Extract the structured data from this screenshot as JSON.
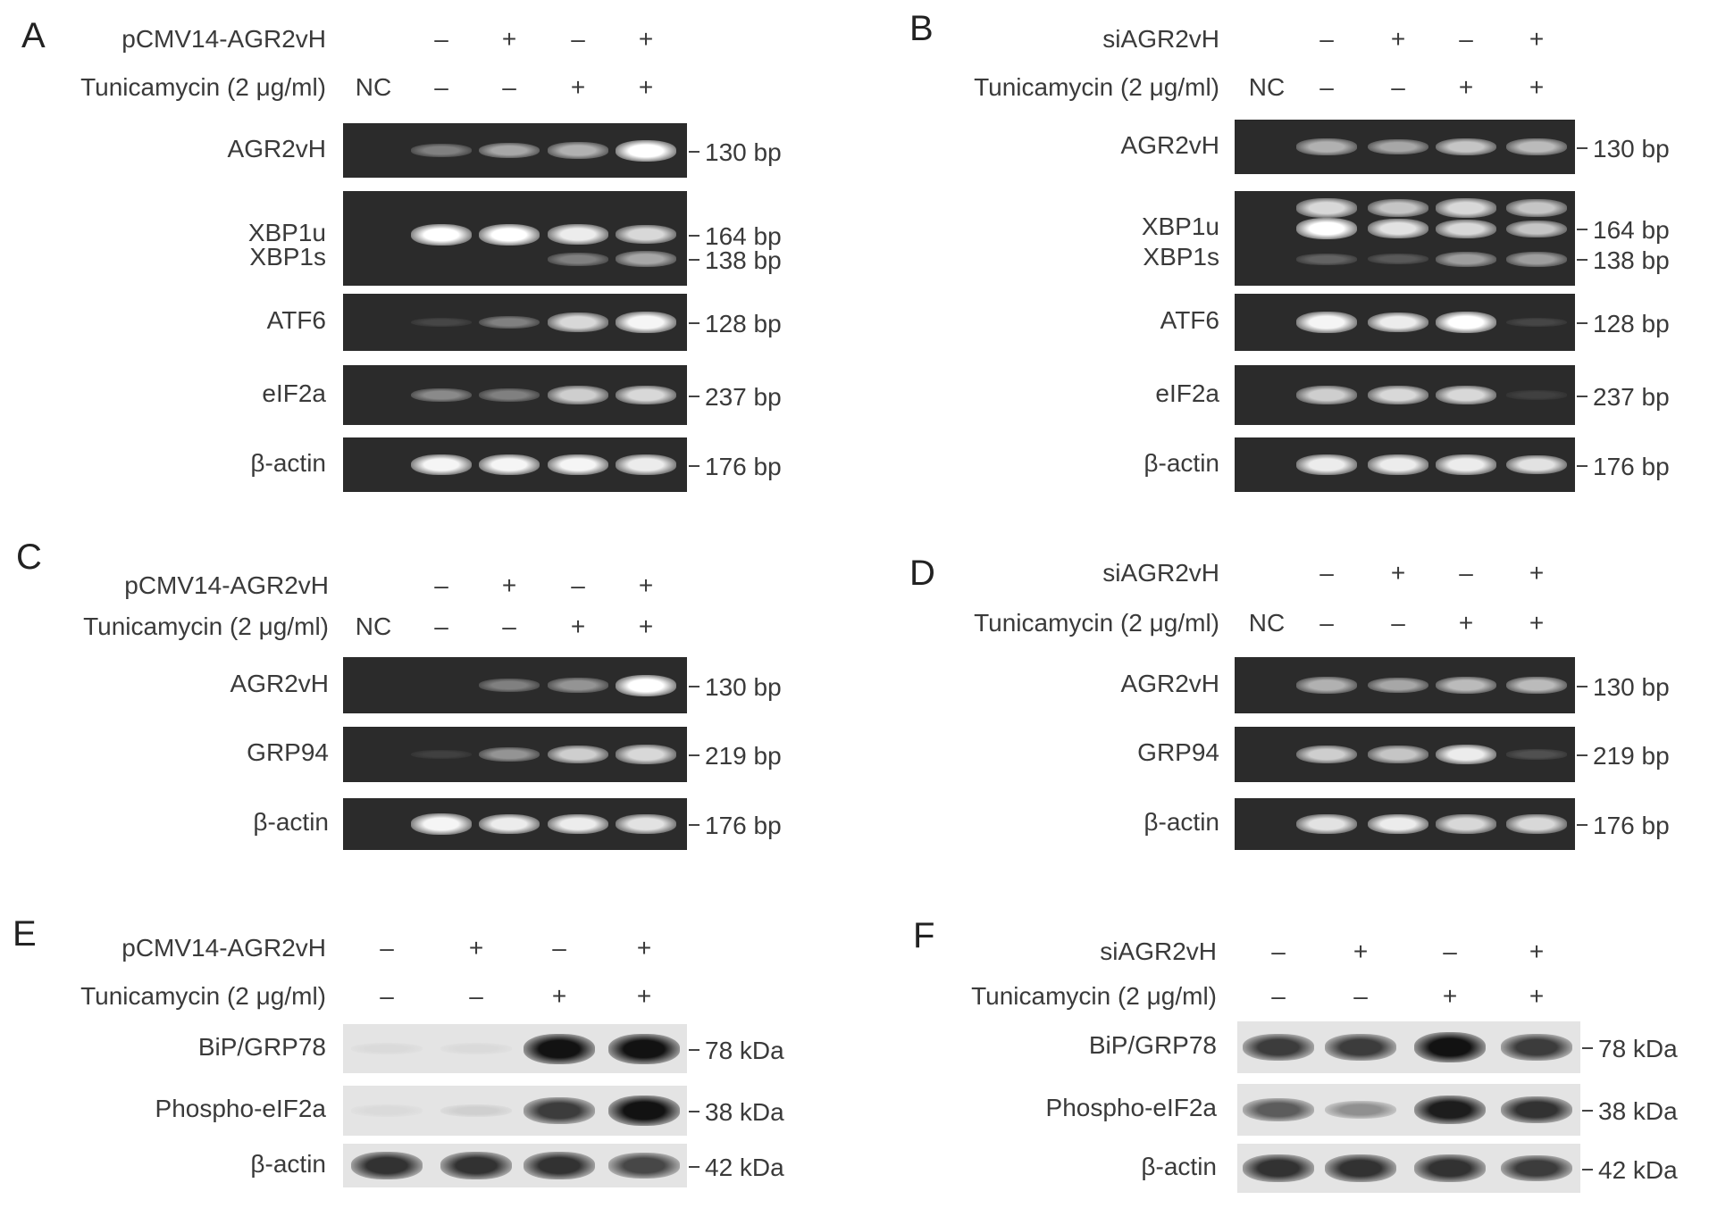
{
  "figure": {
    "panels": [
      {
        "id": "A",
        "type": "rt-pcr",
        "treatments": [
          {
            "label": "pCMV14-AGR2vH",
            "nc": "",
            "values": [
              "–",
              "+",
              "–",
              "+"
            ]
          },
          {
            "label": "Tunicamycin (2 μg/ml)",
            "nc": "NC",
            "values": [
              "–",
              "–",
              "+",
              "+"
            ]
          }
        ],
        "gels": [
          {
            "labels": [
              "AGR2vH"
            ],
            "bands": [
              {
                "marker": "130 bp",
                "intensity": [
                  0,
                  0.35,
                  0.55,
                  0.6,
                  1
                ]
              }
            ]
          },
          {
            "labels": [
              "XBP1u",
              "XBP1s"
            ],
            "bands": [
              {
                "marker": "164 bp",
                "intensity": [
                  0,
                  1,
                  1,
                  0.9,
                  0.8
                ]
              },
              {
                "marker": "138 bp",
                "intensity": [
                  0,
                  0,
                  0,
                  0.35,
                  0.55
                ]
              }
            ]
          },
          {
            "labels": [
              "ATF6"
            ],
            "bands": [
              {
                "marker": "128 bp",
                "intensity": [
                  0,
                  0.05,
                  0.35,
                  0.8,
                  0.95
                ]
              }
            ]
          },
          {
            "labels": [
              "eIF2a"
            ],
            "bands": [
              {
                "marker": "237 bp",
                "intensity": [
                  0,
                  0.4,
                  0.35,
                  0.75,
                  0.8
                ]
              }
            ]
          },
          {
            "labels": [
              "β-actin"
            ],
            "bands": [
              {
                "marker": "176 bp",
                "intensity": [
                  0,
                  0.95,
                  0.95,
                  0.95,
                  0.9
                ]
              }
            ]
          }
        ]
      },
      {
        "id": "B",
        "type": "rt-pcr",
        "treatments": [
          {
            "label": "siAGR2vH",
            "nc": "",
            "values": [
              "–",
              "+",
              "–",
              "+"
            ]
          },
          {
            "label": "Tunicamycin (2 μg/ml)",
            "nc": "NC",
            "values": [
              "–",
              "–",
              "+",
              "+"
            ]
          }
        ],
        "gels": [
          {
            "labels": [
              "AGR2vH"
            ],
            "bands": [
              {
                "marker": "130 bp",
                "intensity": [
                  0,
                  0.6,
                  0.55,
                  0.7,
                  0.65
                ]
              }
            ]
          },
          {
            "labels": [
              "XBP1u",
              "XBP1s"
            ],
            "bands": [
              {
                "marker": "",
                "intensity": [
                  0,
                  0.8,
                  0.7,
                  0.8,
                  0.7
                ]
              },
              {
                "marker": "164 bp",
                "intensity": [
                  0,
                  1,
                  0.85,
                  0.8,
                  0.7
                ]
              },
              {
                "marker": "138 bp",
                "intensity": [
                  0,
                  0.2,
                  0.15,
                  0.5,
                  0.5
                ]
              }
            ]
          },
          {
            "labels": [
              "ATF6"
            ],
            "bands": [
              {
                "marker": "128 bp",
                "intensity": [
                  0,
                  0.95,
                  0.9,
                  1,
                  0.05
                ]
              }
            ]
          },
          {
            "labels": [
              "eIF2a"
            ],
            "bands": [
              {
                "marker": "237 bp",
                "intensity": [
                  0,
                  0.75,
                  0.8,
                  0.8,
                  0.02
                ]
              }
            ]
          },
          {
            "labels": [
              "β-actin"
            ],
            "bands": [
              {
                "marker": "176 bp",
                "intensity": [
                  0,
                  0.9,
                  0.9,
                  0.9,
                  0.85
                ]
              }
            ]
          }
        ]
      },
      {
        "id": "C",
        "type": "rt-pcr",
        "treatments": [
          {
            "label": "pCMV14-AGR2vH",
            "nc": "",
            "values": [
              "–",
              "+",
              "–",
              "+"
            ]
          },
          {
            "label": "Tunicamycin (2 μg/ml)",
            "nc": "NC",
            "values": [
              "–",
              "–",
              "+",
              "+"
            ]
          }
        ],
        "gels": [
          {
            "labels": [
              "AGR2vH"
            ],
            "bands": [
              {
                "marker": "130 bp",
                "intensity": [
                  0,
                  0,
                  0.35,
                  0.45,
                  1
                ]
              }
            ]
          },
          {
            "labels": [
              "GRP94"
            ],
            "bands": [
              {
                "marker": "219 bp",
                "intensity": [
                  0,
                  0.02,
                  0.45,
                  0.75,
                  0.8
                ]
              }
            ]
          },
          {
            "labels": [
              "β-actin"
            ],
            "bands": [
              {
                "marker": "176 bp",
                "intensity": [
                  0,
                  0.95,
                  0.9,
                  0.9,
                  0.85
                ]
              }
            ]
          }
        ]
      },
      {
        "id": "D",
        "type": "rt-pcr",
        "treatments": [
          {
            "label": "siAGR2vH",
            "nc": "",
            "values": [
              "–",
              "+",
              "–",
              "+"
            ]
          },
          {
            "label": "Tunicamycin (2 μg/ml)",
            "nc": "NC",
            "values": [
              "–",
              "–",
              "+",
              "+"
            ]
          }
        ],
        "gels": [
          {
            "labels": [
              "AGR2vH"
            ],
            "bands": [
              {
                "marker": "130 bp",
                "intensity": [
                  0,
                  0.6,
                  0.55,
                  0.65,
                  0.65
                ]
              }
            ]
          },
          {
            "labels": [
              "GRP94"
            ],
            "bands": [
              {
                "marker": "219 bp",
                "intensity": [
                  0,
                  0.75,
                  0.7,
                  0.9,
                  0.1
                ]
              }
            ]
          },
          {
            "labels": [
              "β-actin"
            ],
            "bands": [
              {
                "marker": "176 bp",
                "intensity": [
                  0,
                  0.85,
                  0.9,
                  0.8,
                  0.8
                ]
              }
            ]
          }
        ]
      },
      {
        "id": "E",
        "type": "western",
        "treatments": [
          {
            "label": "pCMV14-AGR2vH",
            "nc": "",
            "values": [
              "–",
              "+",
              "–",
              "+"
            ]
          },
          {
            "label": "Tunicamycin (2 μg/ml)",
            "nc": "",
            "values": [
              "–",
              "–",
              "+",
              "+"
            ]
          }
        ],
        "gels": [
          {
            "labels": [
              "BiP/GRP78"
            ],
            "bands": [
              {
                "marker": "78 kDa",
                "intensity": [
                  0.05,
                  0.05,
                  1,
                  1
                ]
              }
            ]
          },
          {
            "labels": [
              "Phospho-eIF2a"
            ],
            "bands": [
              {
                "marker": "38 kDa",
                "intensity": [
                  0.05,
                  0.1,
                  0.8,
                  1
                ]
              }
            ]
          },
          {
            "labels": [
              "β-actin"
            ],
            "bands": [
              {
                "marker": "42 kDa",
                "intensity": [
                  0.85,
                  0.85,
                  0.85,
                  0.75
                ]
              }
            ]
          }
        ]
      },
      {
        "id": "F",
        "type": "western",
        "treatments": [
          {
            "label": "siAGR2vH",
            "nc": "",
            "values": [
              "–",
              "+",
              "–",
              "+"
            ]
          },
          {
            "label": "Tunicamycin (2 μg/ml)",
            "nc": "",
            "values": [
              "–",
              "–",
              "+",
              "+"
            ]
          }
        ],
        "gels": [
          {
            "labels": [
              "BiP/GRP78"
            ],
            "bands": [
              {
                "marker": "78 kDa",
                "intensity": [
                  0.8,
                  0.8,
                  1,
                  0.8
                ]
              }
            ]
          },
          {
            "labels": [
              "Phospho-eIF2a"
            ],
            "bands": [
              {
                "marker": "38 kDa",
                "intensity": [
                  0.65,
                  0.4,
                  0.95,
                  0.85
                ]
              }
            ]
          },
          {
            "labels": [
              "β-actin"
            ],
            "bands": [
              {
                "marker": "42 kDa",
                "intensity": [
                  0.85,
                  0.85,
                  0.85,
                  0.8
                ]
              }
            ]
          }
        ]
      }
    ]
  }
}
